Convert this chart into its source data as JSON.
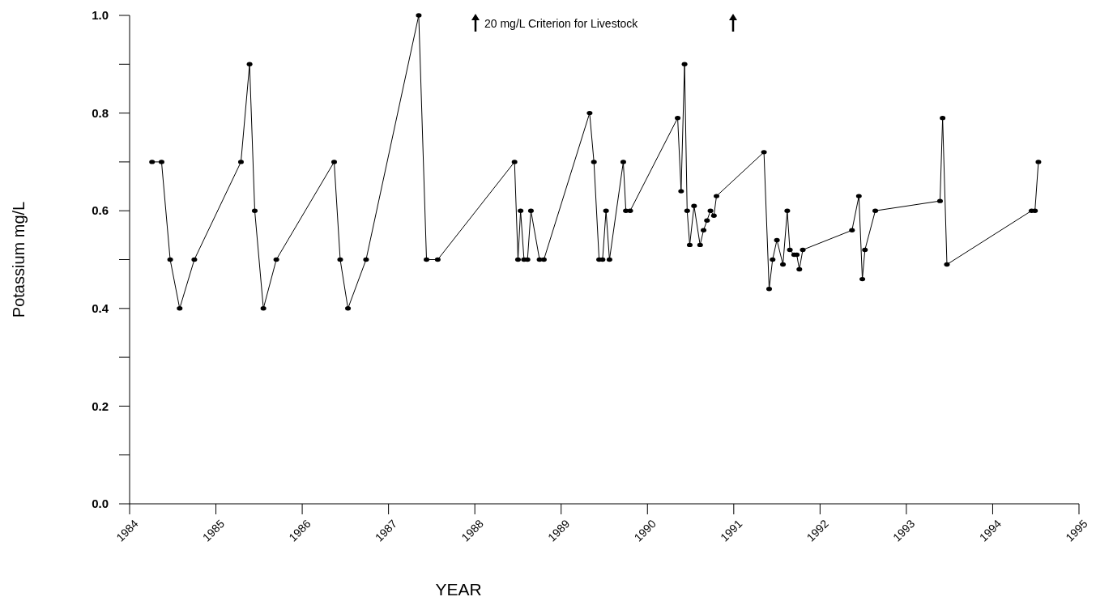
{
  "chart_data": {
    "type": "line",
    "xlabel": "YEAR",
    "ylabel": "Potassium mg/L",
    "annotations": [
      "20 mg/L Criterion for Livestock"
    ],
    "marker": "circle",
    "line_style": "solid",
    "grid": false,
    "xlim": [
      1984,
      1995
    ],
    "xticks": [
      1984,
      1985,
      1986,
      1987,
      1988,
      1989,
      1990,
      1991,
      1992,
      1993,
      1994,
      1995
    ],
    "ylim": [
      0,
      1
    ],
    "yticks": [
      {
        "value": 0,
        "label": "0.0"
      },
      {
        "value": 0.1,
        "label": null
      },
      {
        "value": 0.2,
        "label": "0.2"
      },
      {
        "value": 0.3,
        "label": null
      },
      {
        "value": 0.4,
        "label": "0.4"
      },
      {
        "value": 0.5,
        "label": null
      },
      {
        "value": 0.6,
        "label": "0.6"
      },
      {
        "value": 0.7,
        "label": null
      },
      {
        "value": 0.8,
        "label": "0.8"
      },
      {
        "value": 0.9,
        "label": null
      },
      {
        "value": 1,
        "label": "1.0"
      }
    ],
    "series": [
      {
        "color": "#000000",
        "x": [
          1984.26,
          1984.37,
          1984.47,
          1984.58,
          1984.75,
          1985.29,
          1985.39,
          1985.45,
          1985.55,
          1985.7,
          1986.37,
          1986.44,
          1986.53,
          1986.74,
          1987.35,
          1987.44,
          1987.57,
          1988.46,
          1988.5,
          1988.53,
          1988.57,
          1988.61,
          1988.65,
          1988.75,
          1988.8,
          1989.33,
          1989.38,
          1989.44,
          1989.48,
          1989.52,
          1989.56,
          1989.72,
          1989.75,
          1989.8,
          1990.35,
          1990.39,
          1990.43,
          1990.46,
          1990.49,
          1990.54,
          1990.61,
          1990.65,
          1990.69,
          1990.73,
          1990.77,
          1990.8,
          1991.35,
          1991.41,
          1991.45,
          1991.5,
          1991.57,
          1991.62,
          1991.65,
          1991.7,
          1991.73,
          1991.76,
          1991.8,
          1992.37,
          1992.45,
          1992.49,
          1992.52,
          1992.64,
          1993.39,
          1993.42,
          1993.47,
          1994.45,
          1994.49,
          1994.53
        ],
        "values": [
          0.7,
          0.7,
          0.5,
          0.4,
          0.5,
          0.7,
          0.9,
          0.6,
          0.4,
          0.5,
          0.7,
          0.5,
          0.4,
          0.5,
          1.0,
          0.5,
          0.5,
          0.7,
          0.5,
          0.6,
          0.5,
          0.5,
          0.6,
          0.5,
          0.5,
          0.8,
          0.7,
          0.5,
          0.5,
          0.6,
          0.5,
          0.7,
          0.6,
          0.6,
          0.79,
          0.64,
          0.9,
          0.6,
          0.53,
          0.61,
          0.53,
          0.56,
          0.58,
          0.6,
          0.59,
          0.63,
          0.72,
          0.44,
          0.5,
          0.54,
          0.49,
          0.6,
          0.52,
          0.51,
          0.51,
          0.48,
          0.52,
          0.56,
          0.63,
          0.46,
          0.52,
          0.6,
          0.62,
          0.79,
          0.49,
          0.6,
          0.6,
          0.7
        ]
      }
    ]
  }
}
